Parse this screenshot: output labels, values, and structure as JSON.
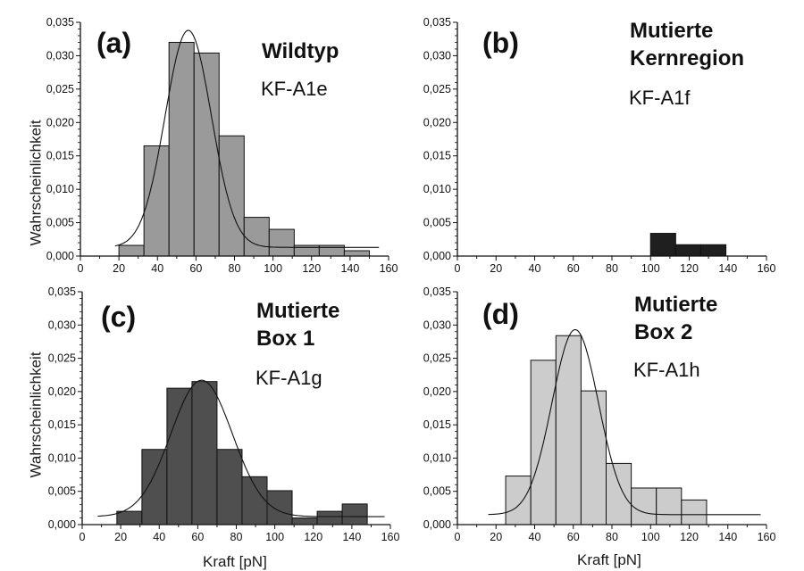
{
  "labels": {
    "y_axis": "Wahrscheinlichkeit",
    "x_axis": "Kraft [pN]"
  },
  "chart_data": [
    {
      "type": "bar",
      "panel": "(a)",
      "title": "Wildtyp",
      "subtitle": "KF-A1e",
      "xlabel": "",
      "ylabel": "Wahrscheinlichkeit",
      "xlim": [
        0,
        160
      ],
      "ylim": [
        0,
        0.035
      ],
      "x_ticks": [
        0,
        20,
        40,
        60,
        80,
        100,
        120,
        140,
        160
      ],
      "y_ticks": [
        "0,000",
        "0,005",
        "0,010",
        "0,015",
        "0,020",
        "0,025",
        "0,030",
        "0,035"
      ],
      "bin_width": 13,
      "bar_color": "#9a9a9a",
      "bars": [
        {
          "x": 20,
          "y": 0.0016
        },
        {
          "x": 33,
          "y": 0.0165
        },
        {
          "x": 46,
          "y": 0.032
        },
        {
          "x": 59,
          "y": 0.0304
        },
        {
          "x": 72,
          "y": 0.018
        },
        {
          "x": 85,
          "y": 0.0058
        },
        {
          "x": 98,
          "y": 0.004
        },
        {
          "x": 111,
          "y": 0.0016
        },
        {
          "x": 124,
          "y": 0.0016
        },
        {
          "x": 137,
          "y": 0.0008
        }
      ],
      "fit": {
        "x0": 56,
        "amplitude": 0.0325,
        "width": 12,
        "offset": 0.0013,
        "x_from": 18,
        "x_to": 155
      }
    },
    {
      "type": "bar",
      "panel": "(b)",
      "title": "Mutierte\nKernregion",
      "subtitle": "KF-A1f",
      "xlabel": "",
      "ylabel": "",
      "xlim": [
        0,
        160
      ],
      "ylim": [
        0,
        0.035
      ],
      "x_ticks": [
        0,
        20,
        40,
        60,
        80,
        100,
        120,
        140,
        160
      ],
      "y_ticks": [
        "0,000",
        "0,005",
        "0,010",
        "0,015",
        "0,020",
        "0,025",
        "0,030",
        "0,035"
      ],
      "bin_width": 13,
      "bar_color": "#1f1f1f",
      "bars": [
        {
          "x": 100,
          "y": 0.0034
        },
        {
          "x": 113,
          "y": 0.0017
        },
        {
          "x": 126,
          "y": 0.0017
        }
      ],
      "fit": null
    },
    {
      "type": "bar",
      "panel": "(c)",
      "title": "Mutierte\nBox 1",
      "subtitle": "KF-A1g",
      "xlabel": "Kraft [pN]",
      "ylabel": "Wahrscheinlichkeit",
      "xlim": [
        0,
        160
      ],
      "ylim": [
        0,
        0.035
      ],
      "x_ticks": [
        0,
        20,
        40,
        60,
        80,
        100,
        120,
        140,
        160
      ],
      "y_ticks": [
        "0,000",
        "0,005",
        "0,010",
        "0,015",
        "0,020",
        "0,025",
        "0,030",
        "0,035"
      ],
      "bin_width": 13,
      "bar_color": "#4f4f4f",
      "bars": [
        {
          "x": 18,
          "y": 0.002
        },
        {
          "x": 31,
          "y": 0.0113
        },
        {
          "x": 44,
          "y": 0.0205
        },
        {
          "x": 57,
          "y": 0.0215
        },
        {
          "x": 70,
          "y": 0.0113
        },
        {
          "x": 83,
          "y": 0.0072
        },
        {
          "x": 96,
          "y": 0.0051
        },
        {
          "x": 109,
          "y": 0.001
        },
        {
          "x": 122,
          "y": 0.002
        },
        {
          "x": 135,
          "y": 0.0031
        }
      ],
      "fit": {
        "x0": 62,
        "amplitude": 0.0205,
        "width": 16,
        "offset": 0.0012,
        "x_from": 8,
        "x_to": 157
      }
    },
    {
      "type": "bar",
      "panel": "(d)",
      "title": "Mutierte\nBox 2",
      "subtitle": "KF-A1h",
      "xlabel": "Kraft [pN]",
      "ylabel": "",
      "xlim": [
        0,
        160
      ],
      "ylim": [
        0,
        0.035
      ],
      "x_ticks": [
        0,
        20,
        40,
        60,
        80,
        100,
        120,
        140,
        160
      ],
      "y_ticks": [
        "0,000",
        "0,005",
        "0,010",
        "0,015",
        "0,020",
        "0,025",
        "0,030",
        "0,035"
      ],
      "bin_width": 13,
      "bar_color": "#cccccc",
      "bars": [
        {
          "x": 25,
          "y": 0.0073
        },
        {
          "x": 38,
          "y": 0.0247
        },
        {
          "x": 51,
          "y": 0.0284
        },
        {
          "x": 64,
          "y": 0.0201
        },
        {
          "x": 77,
          "y": 0.0092
        },
        {
          "x": 90,
          "y": 0.0055
        },
        {
          "x": 103,
          "y": 0.0055
        },
        {
          "x": 116,
          "y": 0.0037
        }
      ],
      "fit": {
        "x0": 61,
        "amplitude": 0.0278,
        "width": 12,
        "offset": 0.0015,
        "x_from": 16,
        "x_to": 157
      }
    }
  ]
}
